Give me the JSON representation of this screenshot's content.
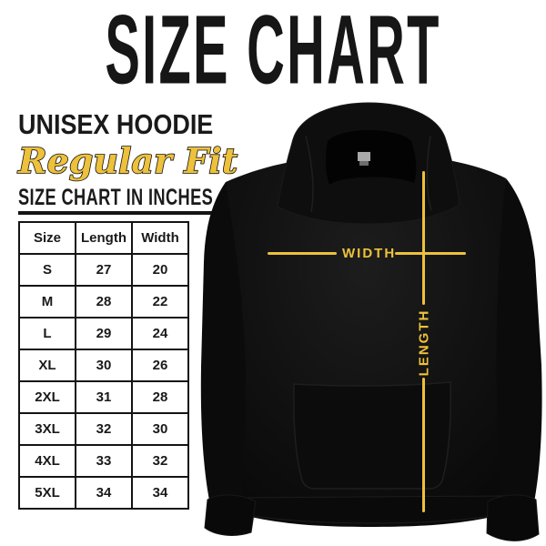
{
  "header": {
    "title": "SIZE CHART"
  },
  "left_panel": {
    "product_name": "UNISEX HOODIE",
    "fit_style": "Regular Fit",
    "table_caption": "SIZE CHART IN INCHES"
  },
  "size_table": {
    "columns": [
      "Size",
      "Length",
      "Width"
    ],
    "rows": [
      [
        "S",
        "27",
        "20"
      ],
      [
        "M",
        "28",
        "22"
      ],
      [
        "L",
        "29",
        "24"
      ],
      [
        "XL",
        "30",
        "26"
      ],
      [
        "2XL",
        "31",
        "28"
      ],
      [
        "3XL",
        "32",
        "30"
      ],
      [
        "4XL",
        "33",
        "32"
      ],
      [
        "5XL",
        "34",
        "34"
      ]
    ]
  },
  "diagram": {
    "width_label": "WIDTH",
    "length_label": "LENGTH"
  },
  "colors": {
    "accent_yellow": "#EDC13B",
    "text_black": "#141414",
    "background": "#FFFFFF",
    "hoodie_black": "#0E0E0E",
    "neck_label_gray": "#A9A9A9"
  }
}
